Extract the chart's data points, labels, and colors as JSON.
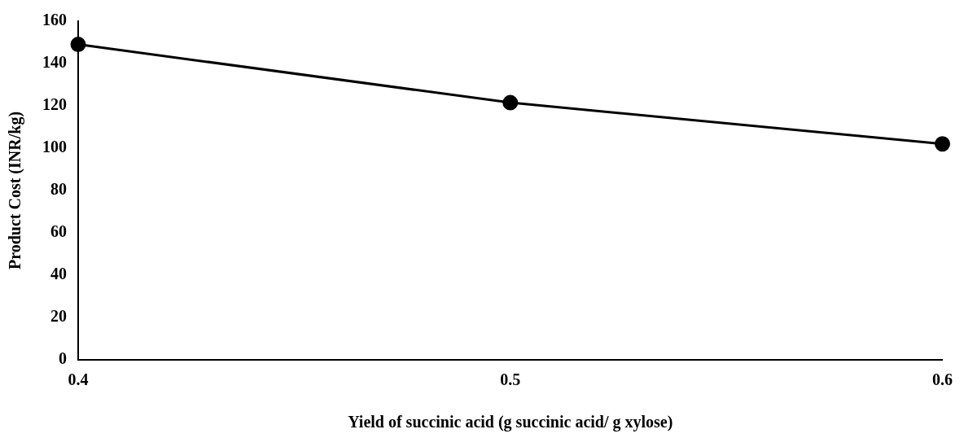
{
  "chart_data": {
    "type": "line",
    "xlabel": "Yield of succinic acid (g succinic acid/ g xylose)",
    "ylabel": "Product Cost (INR/kg)",
    "x": [
      0.4,
      0.5,
      0.6
    ],
    "series": [
      {
        "color": "#000000",
        "values": [
          149,
          121.5,
          102
        ]
      }
    ],
    "xlim": [
      0.4,
      0.6
    ],
    "xticks": [
      0.4,
      0.5,
      0.6
    ],
    "ylim": [
      0,
      160
    ],
    "yticks": [
      0,
      20,
      40,
      60,
      80,
      100,
      120,
      140,
      160
    ],
    "grid": false,
    "legend": false,
    "marker": "circle",
    "line_style": "solid"
  }
}
